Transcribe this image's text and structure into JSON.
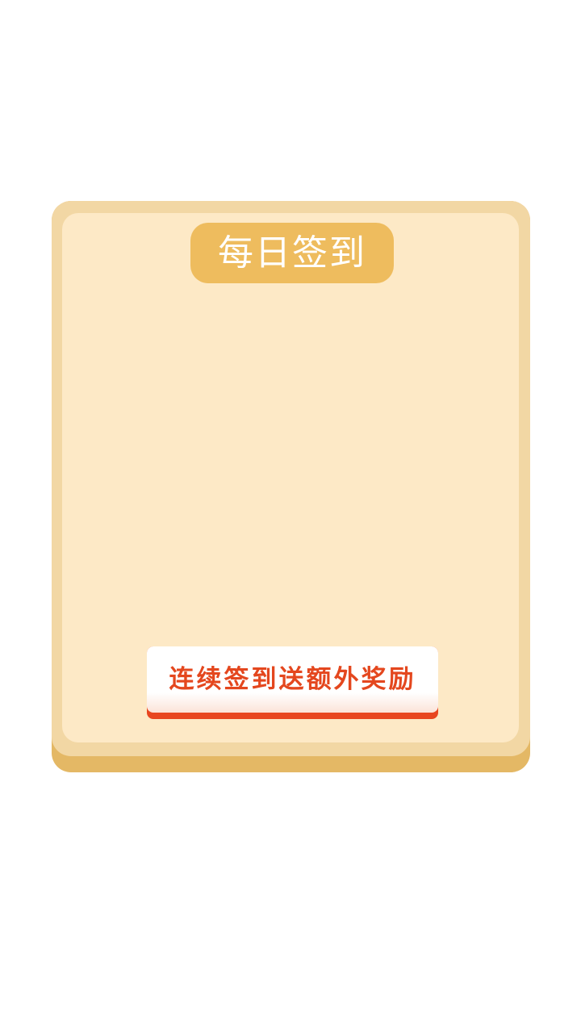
{
  "modal": {
    "title": "每日签到",
    "reward_banner_text": "连续签到送额外奖励"
  },
  "colors": {
    "page_background": "#ffffff",
    "modal_frame": "#f2d7a4",
    "modal_base": "#e4b865",
    "modal_inner": "#fde9c6",
    "title_pill": "#eebc5e",
    "banner_text": "#e4471e",
    "banner_edge": "#e8461f"
  }
}
